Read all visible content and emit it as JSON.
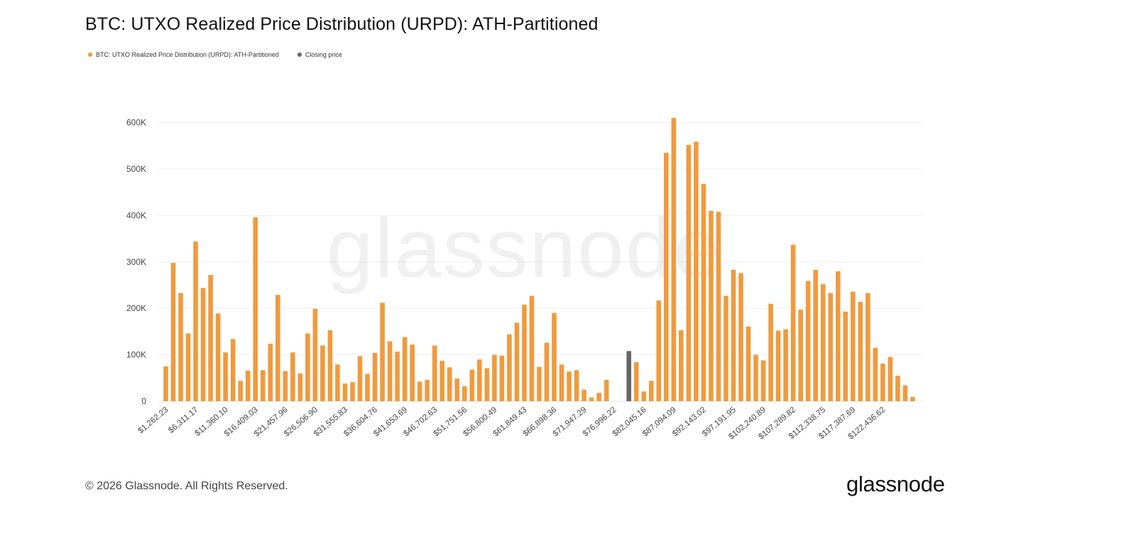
{
  "title": "BTC: UTXO Realized Price Distribution (URPD): ATH-Partitioned",
  "legend": [
    {
      "label": "BTC: UTXO Realized Price Distribution (URPD): ATH-Partitioned",
      "color": "#f09a3e"
    },
    {
      "label": "Closing price",
      "color": "#666666"
    }
  ],
  "watermark": "glassnode",
  "footer": {
    "copyright": "© 2026 Glassnode. All Rights Reserved.",
    "logo": "glassnode"
  },
  "chart_data": {
    "type": "bar",
    "title": "BTC: UTXO Realized Price Distribution (URPD): ATH-Partitioned",
    "xlabel": "",
    "ylabel": "",
    "ylim": [
      0,
      650000
    ],
    "grid": true,
    "legend_placement": "top-left",
    "y_ticks": [
      "0",
      "100K",
      "200K",
      "300K",
      "400K",
      "500K",
      "600K"
    ],
    "y_tick_values": [
      0,
      100000,
      200000,
      300000,
      400000,
      500000,
      600000
    ],
    "x_tick_labels": [
      "$1,262.23",
      "$6,311.17",
      "$11,360.10",
      "$16,409.03",
      "$21,457.96",
      "$26,506.90",
      "$31,555.83",
      "$36,604.76",
      "$41,653.69",
      "$46,702.63",
      "$51,751.56",
      "$56,800.49",
      "$61,849.43",
      "$66,898.36",
      "$71,947.29",
      "$76,996.22",
      "$82,045.16",
      "$87,094.09",
      "$92,143.02",
      "$97,191.95",
      "$102,240.89",
      "$107,289.82",
      "$112,338.75",
      "$117,387.69",
      "$122,436.62"
    ],
    "x_tick_every": 4,
    "closing_price_index": 62,
    "series": [
      {
        "name": "BTC: UTXO Realized Price Distribution (URPD): ATH-Partitioned",
        "color": "#f09a3e",
        "values": [
          75000,
          298000,
          233000,
          146000,
          344000,
          244000,
          272000,
          189000,
          105000,
          134000,
          44000,
          66000,
          396000,
          67000,
          124000,
          229000,
          65000,
          105000,
          60000,
          146000,
          199000,
          120000,
          153000,
          79000,
          38000,
          41000,
          97000,
          59000,
          104000,
          212000,
          129000,
          107000,
          138000,
          122000,
          42000,
          46000,
          120000,
          87000,
          73000,
          49000,
          32000,
          68000,
          90000,
          71000,
          100000,
          98000,
          144000,
          169000,
          208000,
          227000,
          74000,
          126000,
          190000,
          79000,
          64000,
          67000,
          25000,
          8000,
          18000,
          46000,
          0,
          0,
          0,
          84000,
          21000,
          44000,
          217000,
          535000,
          610000,
          153000,
          552000,
          559000,
          468000,
          410000,
          408000,
          227000,
          283000,
          276000,
          161000,
          100000,
          88000,
          210000,
          152000,
          155000,
          337000,
          197000,
          259000,
          283000,
          252000,
          233000,
          280000,
          193000,
          236000,
          214000,
          233000,
          115000,
          81000,
          95000,
          55000,
          34000,
          9000
        ]
      },
      {
        "name": "Closing price",
        "color": "#666666",
        "values_at_index": {
          "62": 108000
        }
      }
    ]
  }
}
